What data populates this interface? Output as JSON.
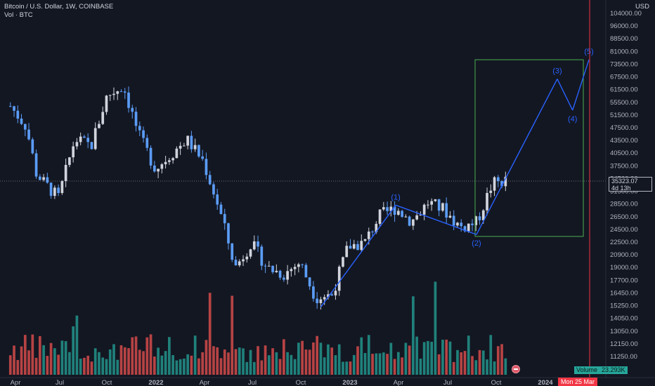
{
  "legend": {
    "symbol_line": "Bitcoin / U.S. Dollar, 1W, COINBASE",
    "volume_line": "Vol · BTC"
  },
  "price_axis": {
    "currency": "USD",
    "labels": [
      "104000.00",
      "96000.00",
      "88500.00",
      "81000.00",
      "73500.00",
      "67500.00",
      "61500.00",
      "55500.00",
      "51500.00",
      "47500.00",
      "43500.00",
      "40500.00",
      "37500.00",
      "34500.00",
      "31500.00",
      "28500.00",
      "26500.00",
      "24500.00",
      "22500.00",
      "20900.00",
      "19000.00",
      "17700.00",
      "16450.00",
      "15250.00",
      "14050.00",
      "13050.00",
      "12150.00",
      "11250.00"
    ]
  },
  "time_axis": {
    "labels": [
      "Apr",
      "Jul",
      "Oct",
      "2022",
      "Apr",
      "Jul",
      "Oct",
      "2023",
      "Apr",
      "Jul",
      "Oct",
      "2024"
    ]
  },
  "last_price": {
    "value": "35323.07",
    "countdown": "4d 13h"
  },
  "volume_tag": {
    "label": "Volume",
    "value": "23.293K"
  },
  "cursor_date": "Mon 25 Mar",
  "wave_labels": [
    "(1)",
    "(2)",
    "(3)",
    "(4)",
    "(5)"
  ],
  "chart_data": {
    "type": "candlestick",
    "timeframe": "1W",
    "ylim": [
      10500,
      110000
    ],
    "log_scale": true,
    "grid": false,
    "colors": {
      "up": "#d1d4dc",
      "down": "#5b9cf6",
      "vol_up": "#26a69a",
      "vol_down": "#ef5350",
      "wave": "#2962ff",
      "box": "#4caf50",
      "cursor": "#f23645"
    },
    "close_path": [
      [
        "2021-04",
        57000
      ],
      [
        "2021-05",
        50000
      ],
      [
        "2021-05-20",
        37000
      ],
      [
        "2021-06",
        35000
      ],
      [
        "2021-07",
        31500
      ],
      [
        "2021-08",
        46000
      ],
      [
        "2021-09",
        44000
      ],
      [
        "2021-10",
        61000
      ],
      [
        "2021-11",
        65000
      ],
      [
        "2021-12",
        47000
      ],
      [
        "2022-01",
        38000
      ],
      [
        "2022-02",
        42000
      ],
      [
        "2022-03",
        46000
      ],
      [
        "2022-04",
        40000
      ],
      [
        "2022-05",
        29500
      ],
      [
        "2022-06",
        20000
      ],
      [
        "2022-07",
        23500
      ],
      [
        "2022-08",
        20000
      ],
      [
        "2022-09",
        19200
      ],
      [
        "2022-10",
        20700
      ],
      [
        "2022-11",
        16500
      ],
      [
        "2022-12",
        16800
      ],
      [
        "2023-01",
        23000
      ],
      [
        "2023-02",
        23500
      ],
      [
        "2023-03",
        28000
      ],
      [
        "2023-04",
        29500
      ],
      [
        "2023-05",
        27000
      ],
      [
        "2023-06",
        30500
      ],
      [
        "2023-07",
        29200
      ],
      [
        "2023-08",
        26000
      ],
      [
        "2023-09",
        26800
      ],
      [
        "2023-10",
        34500
      ],
      [
        "2023-10-30",
        35323
      ]
    ],
    "elliott_wave": [
      {
        "label": "(1)",
        "date": "2023-04",
        "price": 30000
      },
      {
        "label": "(2)",
        "date": "2023-09",
        "price": 24800
      },
      {
        "label": "(3)",
        "date": "2024-02",
        "price": 68000
      },
      {
        "label": "(4)",
        "date": "2024-03",
        "price": 55500
      },
      {
        "label": "(5)",
        "date": "2024-04",
        "price": 77000
      }
    ],
    "projection_box": {
      "date_from": "2023-09",
      "date_to": "2024-04",
      "price_from": 24500,
      "price_to": 77000
    },
    "last_volume": "23.293K"
  }
}
